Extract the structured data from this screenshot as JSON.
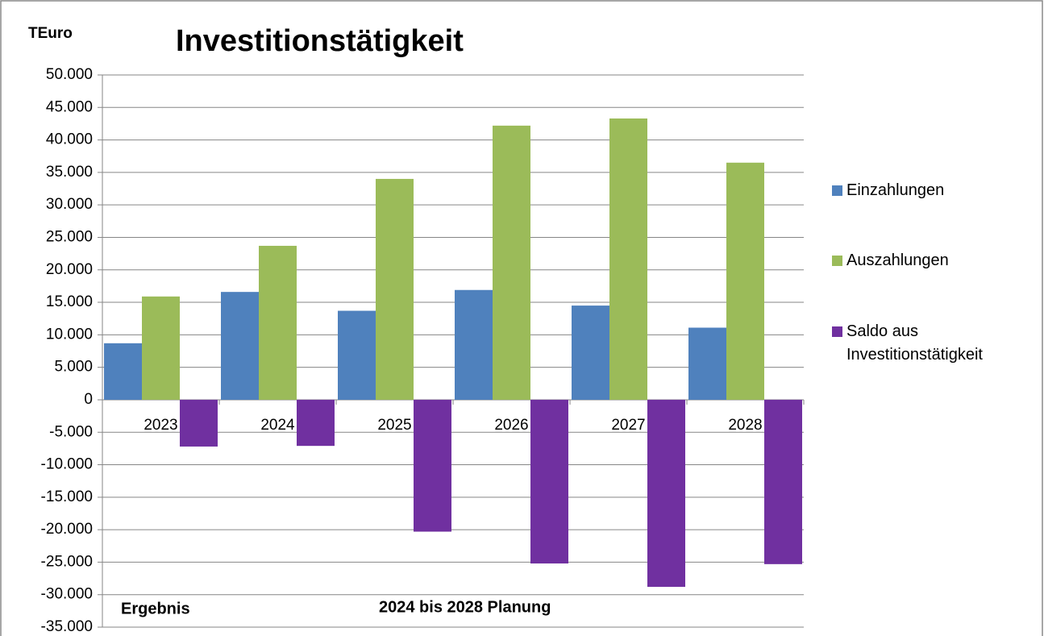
{
  "chart_data": {
    "type": "bar",
    "title": "Investitionstätigkeit",
    "y_label": "TEuro",
    "annotations": [
      "Ergebnis",
      "2024 bis 2028 Planung"
    ],
    "categories": [
      "2023",
      "2024",
      "2025",
      "2026",
      "2027",
      "2028"
    ],
    "series": [
      {
        "name": "Einzahlungen",
        "color": "#4f81bd",
        "values": [
          8700,
          16600,
          13700,
          16900,
          14500,
          11100
        ]
      },
      {
        "name": "Auszahlungen",
        "color": "#9bbb59",
        "values": [
          15900,
          23700,
          34000,
          42200,
          43300,
          36500
        ]
      },
      {
        "name": "Saldo aus Investitionstätigkeit",
        "color": "#7030a0",
        "values": [
          -7200,
          -7100,
          -20300,
          -25200,
          -28800,
          -25300
        ]
      }
    ],
    "ylim": [
      -35000,
      50000
    ],
    "yticks": [
      {
        "value": 50000,
        "label": "50.000"
      },
      {
        "value": 45000,
        "label": "45.000"
      },
      {
        "value": 40000,
        "label": "40.000"
      },
      {
        "value": 35000,
        "label": "35.000"
      },
      {
        "value": 30000,
        "label": "30.000"
      },
      {
        "value": 25000,
        "label": "25.000"
      },
      {
        "value": 20000,
        "label": "20.000"
      },
      {
        "value": 15000,
        "label": "15.000"
      },
      {
        "value": 10000,
        "label": "10.000"
      },
      {
        "value": 5000,
        "label": "5.000"
      },
      0,
      {
        "value": -5000,
        "label": "-5.000"
      },
      {
        "value": -10000,
        "label": "-10.000"
      },
      {
        "value": -15000,
        "label": "-15.000"
      },
      {
        "value": -20000,
        "label": "-20.000"
      },
      {
        "value": -25000,
        "label": "-25.000"
      },
      {
        "value": -30000,
        "label": "-30.000"
      },
      {
        "value": -35000,
        "label": "-35.000"
      }
    ],
    "grid": true,
    "legend": "right"
  }
}
